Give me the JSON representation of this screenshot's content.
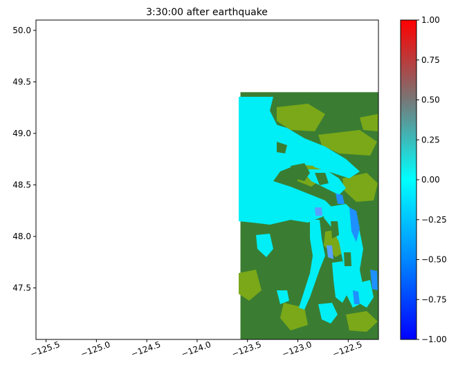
{
  "chart_data": {
    "type": "heatmap",
    "title": "3:30:00 after earthquake",
    "xlabel": "",
    "ylabel": "",
    "xlim": [
      -125.6,
      -122.2
    ],
    "ylim": [
      47.0,
      50.1
    ],
    "x_ticks": [
      -125.5,
      -125.0,
      -124.5,
      -124.0,
      -123.5,
      -123.0,
      -122.5
    ],
    "x_tick_labels": [
      "−125.5",
      "−125.0",
      "−124.5",
      "−124.0",
      "−123.5",
      "−123.0",
      "−122.5"
    ],
    "y_ticks": [
      47.5,
      48.0,
      48.5,
      49.0,
      49.5,
      50.0
    ],
    "y_tick_labels": [
      "47.5",
      "48.0",
      "48.5",
      "49.0",
      "49.5",
      "50.0"
    ],
    "data_extent": {
      "x": [
        -123.57,
        -122.2
      ],
      "y": [
        47.0,
        49.4
      ]
    },
    "colorbar": {
      "vmin": -1.0,
      "vmax": 1.0,
      "ticks": [
        -1.0,
        -0.75,
        -0.5,
        -0.25,
        0.0,
        0.25,
        0.5,
        0.75,
        1.0
      ],
      "tick_labels": [
        "−1.00",
        "−0.75",
        "−0.50",
        "−0.25",
        "0.00",
        "0.25",
        "0.50",
        "0.75",
        "1.00"
      ],
      "colors": [
        "#0000ff",
        "#0088ff",
        "#00ffff",
        "#777777",
        "#ff0000"
      ]
    },
    "colors": {
      "land": "#3a7d32",
      "lowland": "#7aa818",
      "water": "#00eef5"
    },
    "grid": false
  }
}
